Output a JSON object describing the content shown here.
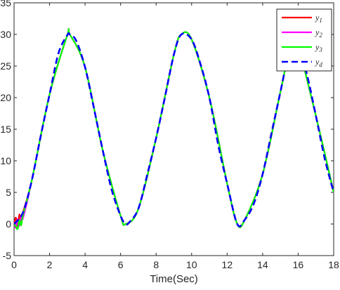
{
  "chart_data": {
    "type": "line",
    "title": "",
    "xlabel": "Time(Sec)",
    "ylabel": "",
    "xlim": [
      0,
      18
    ],
    "ylim": [
      -5,
      35
    ],
    "xticks": [
      0,
      2,
      4,
      6,
      8,
      10,
      12,
      14,
      16,
      18
    ],
    "yticks": [
      -5,
      0,
      5,
      10,
      15,
      20,
      25,
      30,
      35
    ],
    "grid": false,
    "legend_position": "top-right",
    "series": [
      {
        "name": "y1",
        "label_base": "y",
        "label_sub": "1",
        "color": "#ff0000",
        "style": "solid",
        "x": [
          0.0,
          0.1,
          0.2,
          0.3,
          0.4,
          0.5,
          1.0,
          2.0,
          3.0,
          3.14,
          4.0,
          5.0,
          6.0,
          6.28,
          7.0,
          8.0,
          9.0,
          9.42,
          10.0,
          11.0,
          12.0,
          12.57,
          13.0,
          14.0,
          15.0,
          15.71,
          16.0,
          17.0,
          18.0
        ],
        "y": [
          0.0,
          1.0,
          -0.5,
          1.5,
          0.2,
          1.8,
          6.9,
          20.5,
          29.9,
          30.0,
          24.8,
          11.6,
          1.3,
          0.0,
          2.4,
          13.6,
          26.8,
          30.0,
          29.2,
          20.0,
          6.4,
          0.0,
          0.7,
          7.9,
          20.9,
          30.0,
          28.3,
          17.1,
          5.0
        ]
      },
      {
        "name": "y2",
        "label_base": "y",
        "label_sub": "2",
        "color": "#ff00ff",
        "style": "solid",
        "x": [
          0.0,
          0.1,
          0.2,
          0.3,
          0.4,
          0.5,
          1.0,
          2.0,
          3.0,
          3.14,
          4.0,
          5.0,
          6.0,
          6.28,
          7.0,
          8.0,
          9.0,
          9.42,
          10.0,
          11.0,
          12.0,
          12.57,
          13.0,
          14.0,
          15.0,
          15.71,
          16.0,
          17.0,
          18.0
        ],
        "y": [
          0.0,
          -0.6,
          0.8,
          -0.3,
          1.2,
          0.9,
          6.9,
          20.5,
          29.9,
          30.0,
          24.8,
          11.6,
          1.3,
          0.0,
          2.4,
          13.6,
          26.8,
          30.0,
          29.2,
          20.0,
          6.4,
          0.0,
          0.7,
          7.9,
          20.9,
          30.0,
          28.3,
          17.1,
          5.0
        ]
      },
      {
        "name": "y3",
        "label_base": "y",
        "label_sub": "3",
        "color": "#00ff00",
        "style": "solid",
        "x": [
          0.0,
          0.1,
          0.2,
          0.3,
          0.4,
          0.5,
          1.0,
          2.0,
          3.0,
          3.14,
          4.0,
          5.0,
          6.0,
          6.28,
          7.0,
          8.0,
          9.0,
          9.42,
          10.0,
          11.0,
          12.0,
          12.57,
          13.0,
          14.0,
          15.0,
          15.71,
          16.0,
          17.0,
          18.0
        ],
        "y": [
          0.0,
          -0.4,
          -0.8,
          0.6,
          -0.2,
          1.4,
          6.9,
          20.5,
          29.9,
          30.0,
          24.8,
          11.6,
          1.3,
          0.0,
          2.4,
          13.6,
          26.8,
          30.0,
          29.2,
          20.0,
          6.4,
          0.0,
          0.7,
          7.9,
          20.9,
          30.0,
          28.3,
          17.1,
          5.0
        ]
      },
      {
        "name": "yd",
        "label_base": "y",
        "label_sub": "d",
        "color": "#0000ff",
        "style": "dashed",
        "x": [
          0.0,
          0.5,
          1.0,
          1.5,
          2.0,
          2.5,
          3.0,
          3.14,
          3.5,
          4.0,
          4.5,
          5.0,
          5.5,
          6.0,
          6.28,
          6.5,
          7.0,
          7.5,
          8.0,
          8.5,
          9.0,
          9.42,
          10.0,
          10.5,
          11.0,
          11.5,
          12.0,
          12.57,
          13.0,
          13.5,
          14.0,
          14.5,
          15.0,
          15.71,
          16.0,
          16.5,
          17.0,
          17.5,
          18.0
        ],
        "y": [
          0.0,
          1.8,
          6.9,
          13.9,
          20.5,
          27.0,
          29.9,
          30.0,
          29.0,
          24.8,
          18.3,
          11.6,
          5.4,
          1.3,
          0.0,
          0.3,
          2.4,
          7.8,
          13.6,
          20.1,
          26.8,
          30.0,
          29.2,
          25.3,
          20.0,
          12.5,
          6.4,
          0.0,
          0.7,
          3.2,
          7.9,
          14.4,
          20.9,
          30.0,
          28.3,
          23.6,
          17.1,
          10.3,
          5.0
        ]
      }
    ]
  }
}
